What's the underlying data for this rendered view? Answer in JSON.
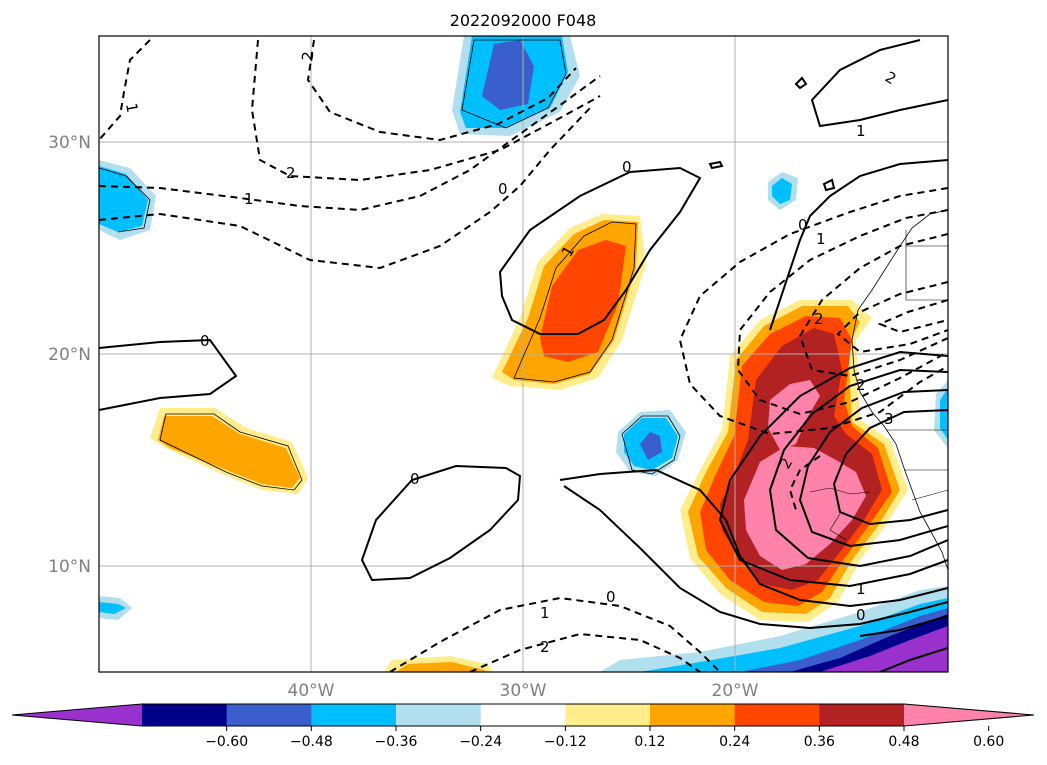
{
  "title": "2022092000 F048",
  "map": {
    "lat_labels": [
      "30°N",
      "20°N",
      "10°N"
    ],
    "lon_labels": [
      "40°W",
      "30°W",
      "20°W"
    ],
    "grid": true
  },
  "colorbar": {
    "orientation": "horizontal",
    "extend": "both",
    "colors": [
      "#9932CC",
      "#00008B",
      "#3A5FCD",
      "#00BFFF",
      "#B2DFEE",
      "#FFFFFF",
      "#FFEC8B",
      "#FFA500",
      "#FF4500",
      "#B22222",
      "#FF82AB"
    ],
    "tick_labels": [
      "−0.60",
      "−0.48",
      "−0.36",
      "−0.24",
      "−0.12",
      "0.12",
      "0.24",
      "0.36",
      "0.48",
      "0.60"
    ]
  },
  "contour_labels": [
    "2",
    "1",
    "2",
    "1",
    "0",
    "0",
    "1",
    "2",
    "0",
    "0",
    "1",
    "2",
    "3",
    "2",
    "1",
    "0",
    "0",
    "1",
    "2",
    "1",
    "0",
    "2"
  ]
}
